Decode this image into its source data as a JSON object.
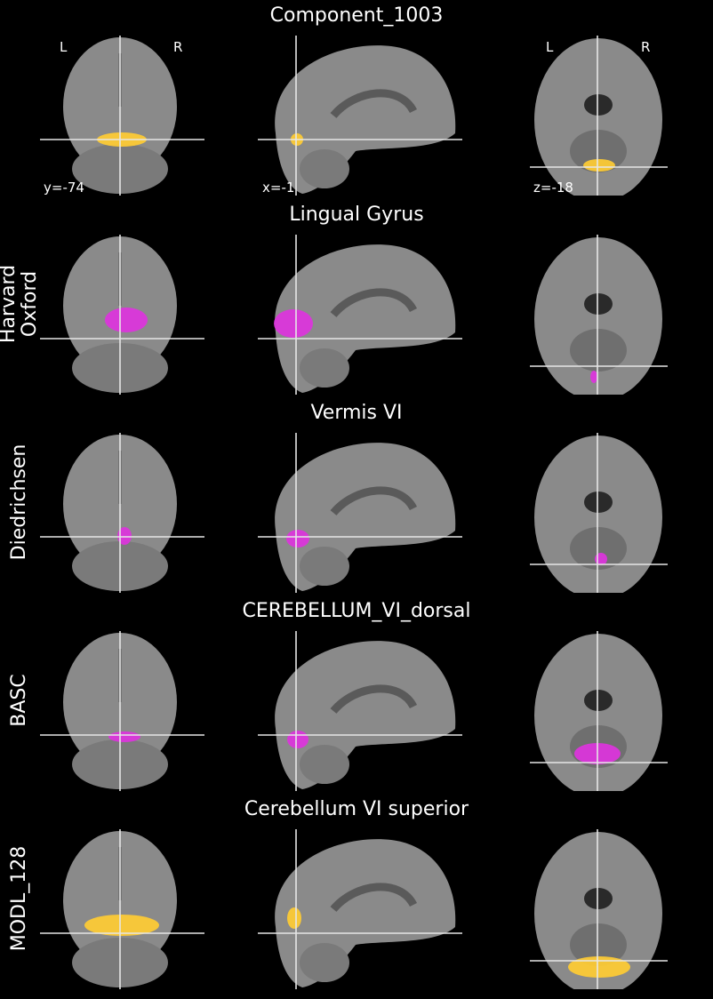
{
  "figure": {
    "rows": [
      {
        "title": "Component_1003",
        "side_label": "",
        "overlay": "heat",
        "coords": {
          "coronal": "y=-74",
          "sagittal": "x=-1",
          "axial": "z=-18"
        },
        "orientation": {
          "left": "L",
          "right": "R"
        }
      },
      {
        "title": "Lingual Gyrus",
        "side_label": "Harvard\nOxford",
        "overlay": "magenta"
      },
      {
        "title": "Vermis VI",
        "side_label": "Diedrichsen",
        "overlay": "magenta"
      },
      {
        "title": "CEREBELLUM_VI_dorsal",
        "side_label": "BASC",
        "overlay": "magenta"
      },
      {
        "title": "Cerebellum VI superior",
        "side_label": "MODL_128",
        "overlay": "heat"
      }
    ],
    "colors": {
      "background": "#000000",
      "brain": "#8a8a8a",
      "heat": "#ffcc33",
      "magenta": "#dd33dd",
      "crosshair": "#e6e6e6"
    }
  }
}
